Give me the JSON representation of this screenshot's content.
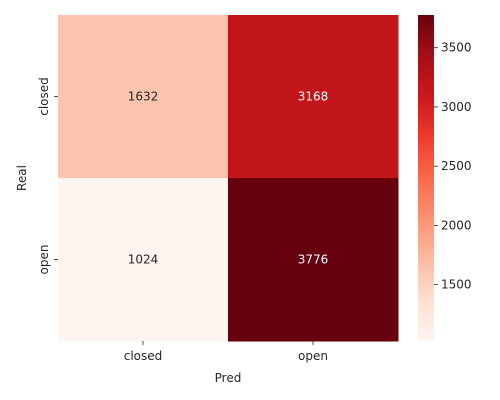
{
  "chart_data": {
    "type": "heatmap",
    "title": "",
    "xlabel": "Pred",
    "ylabel": "Real",
    "x_categories": [
      "closed",
      "open"
    ],
    "y_categories": [
      "closed",
      "open"
    ],
    "values": [
      [
        1632,
        3168
      ],
      [
        1024,
        3776
      ]
    ],
    "colorscale": "Reds",
    "colorbar": {
      "range": [
        1024,
        3776
      ],
      "ticks": [
        1500,
        2000,
        2500,
        3000,
        3500
      ]
    }
  }
}
